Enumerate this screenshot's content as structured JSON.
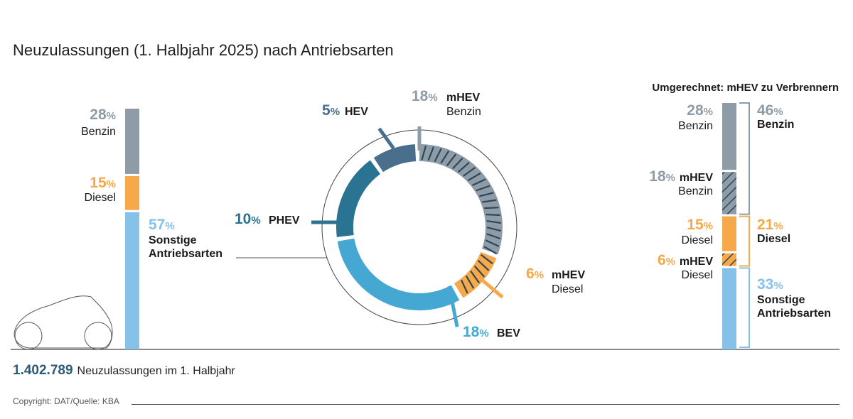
{
  "title": "Neuzulassungen (1. Halbjahr 2025) nach Antriebsarten",
  "colors": {
    "benzin": "#8e9ca8",
    "diesel": "#f5a94a",
    "sonstige": "#85c1e9",
    "bev": "#45a8d3",
    "phev": "#2a7392",
    "hev": "#4a6f8c",
    "mhev_benzin": "#8e9ca8",
    "mhev_diesel": "#f5a94a",
    "dark_text": "#2d5a78"
  },
  "footer": {
    "total": "1.402.789",
    "total_label": "Neuzulassungen im 1. Halbjahr",
    "copyright": "Copyright: DAT/Quelle: KBA"
  },
  "converted_heading": "Umgerechnet: mHEV zu Verbrennern",
  "chart_data": [
    {
      "type": "bar",
      "name": "stacked-left",
      "categories": [
        "Benzin",
        "Diesel",
        "Sonstige Antriebsarten"
      ],
      "values": [
        28,
        15,
        57
      ],
      "labels": [
        {
          "pct": "28",
          "line1": "Benzin",
          "line2": ""
        },
        {
          "pct": "15",
          "line1": "Diesel",
          "line2": ""
        },
        {
          "pct": "57",
          "line1": "Sonstige",
          "line2": "Antriebsarten"
        }
      ]
    },
    {
      "type": "pie",
      "name": "donut",
      "slices": [
        {
          "key": "mhev_benzin",
          "pct": "18",
          "line1": "mHEV",
          "line2": "Benzin",
          "value": 18
        },
        {
          "key": "mhev_diesel",
          "pct": "6",
          "line1": "mHEV",
          "line2": "Diesel",
          "value": 6
        },
        {
          "key": "bev",
          "pct": "18",
          "line1": "BEV",
          "line2": "",
          "value": 18
        },
        {
          "key": "phev",
          "pct": "10",
          "line1": "PHEV",
          "line2": "",
          "value": 10
        },
        {
          "key": "hev",
          "pct": "5",
          "line1": "HEV",
          "line2": "",
          "value": 5
        }
      ]
    },
    {
      "type": "bar",
      "name": "stacked-right",
      "segments": [
        {
          "key": "benzin",
          "pct": "28",
          "line1": "Benzin",
          "line2": "",
          "value": 28
        },
        {
          "key": "mhev_benzin",
          "pct": "18",
          "line1": "mHEV",
          "line2": "Benzin",
          "value": 18
        },
        {
          "key": "diesel",
          "pct": "15",
          "line1": "Diesel",
          "line2": "",
          "value": 15
        },
        {
          "key": "mhev_diesel",
          "pct": "6",
          "line1": "mHEV",
          "line2": "Diesel",
          "value": 6
        },
        {
          "key": "sonstige",
          "pct": "33",
          "line1": "",
          "line2": "",
          "value": 33
        }
      ],
      "totals": [
        {
          "pct": "46",
          "line1": "Benzin",
          "line2": ""
        },
        {
          "pct": "21",
          "line1": "Diesel",
          "line2": ""
        },
        {
          "pct": "33",
          "line1": "Sonstige",
          "line2": "Antriebsarten"
        }
      ]
    }
  ]
}
